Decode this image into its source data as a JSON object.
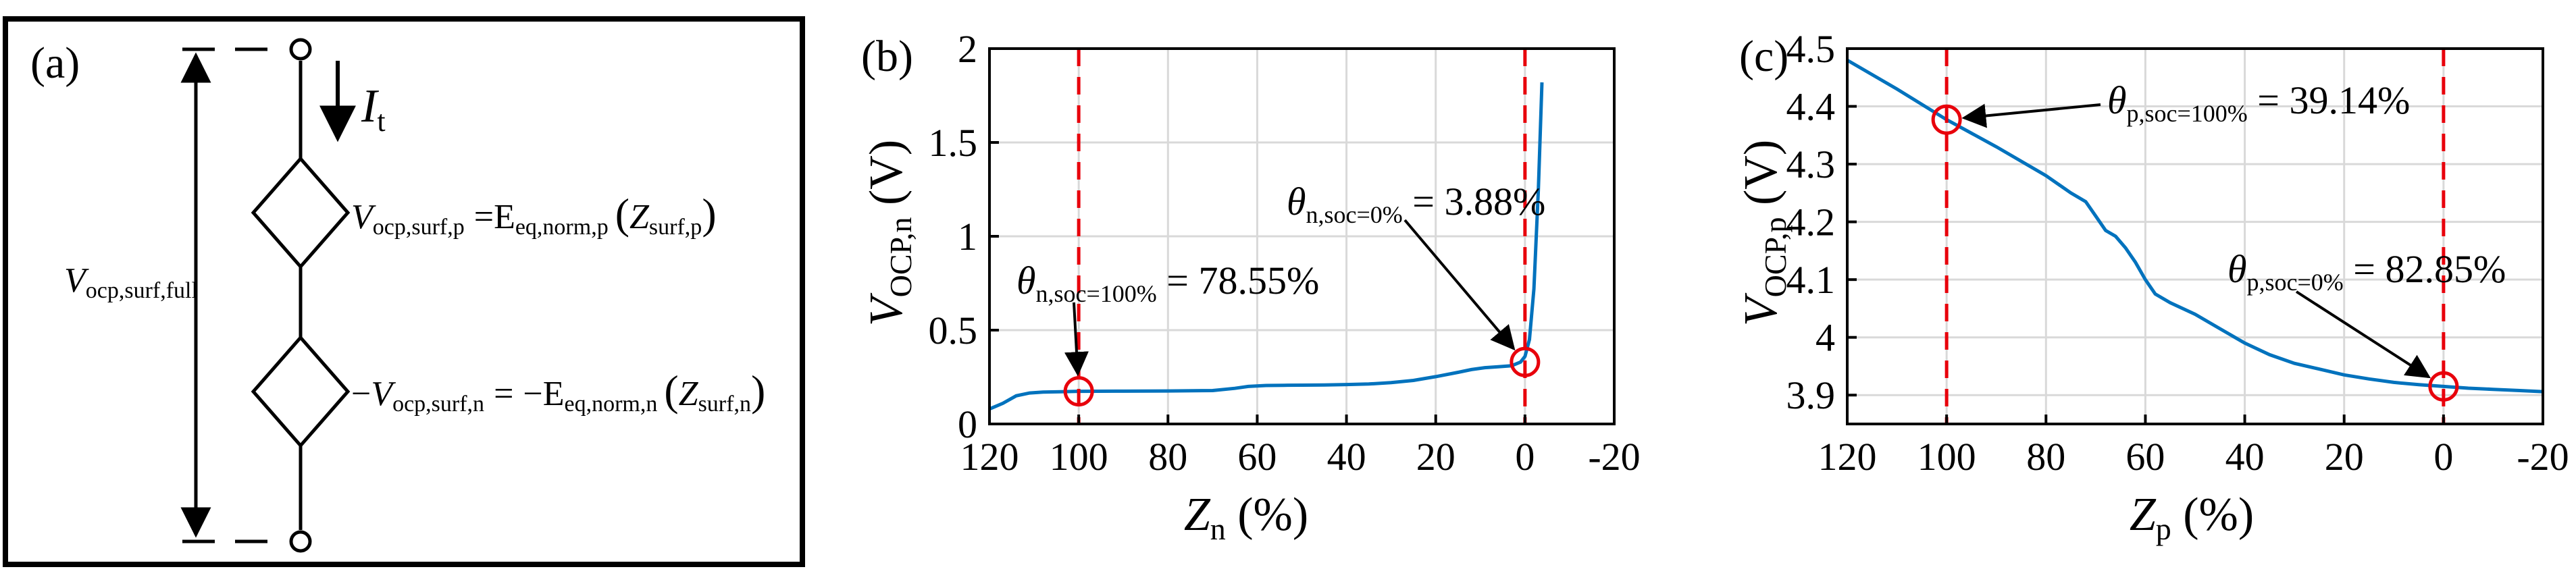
{
  "figure": {
    "panels": [
      {
        "id": "a",
        "label": "(a)",
        "type": "circuit",
        "left_voltage": {
          "main": "V",
          "sub": "ocp,surf,full"
        },
        "current": {
          "main": "I",
          "sub": "t"
        },
        "source_top": {
          "lhs_sign": "",
          "lhs_main": "V",
          "lhs_sub": "ocp,surf,p",
          "eq": "=",
          "rhs_sign": "",
          "fn_main": "E",
          "fn_sub": "eq,norm,p",
          "arg_main": "Z",
          "arg_sub": "surf,p"
        },
        "source_bottom": {
          "lhs_sign": "−",
          "lhs_main": "V",
          "lhs_sub": "ocp,surf,n",
          "eq": "=",
          "rhs_sign": "−",
          "fn_main": "E",
          "fn_sub": "eq,norm,n",
          "arg_main": "Z",
          "arg_sub": "surf,n"
        }
      }
    ]
  },
  "chart_data": [
    {
      "id": "b",
      "label": "(b)",
      "type": "line",
      "xlabel": {
        "main": "Z",
        "sub": "n",
        "unit": " (%)"
      },
      "ylabel": {
        "main": "V",
        "sub": "OCP,n",
        "unit": " (V)"
      },
      "xlim": [
        120,
        -20
      ],
      "x_reversed": true,
      "ylim": [
        0,
        2
      ],
      "xticks": [
        120,
        100,
        80,
        60,
        40,
        20,
        0,
        -20
      ],
      "xtick_labels": [
        "120",
        "100",
        "80",
        "60",
        "40",
        "20",
        "0",
        "-20"
      ],
      "yticks": [
        0,
        0.5,
        1,
        1.5,
        2
      ],
      "ytick_labels": [
        "0",
        "0.5",
        "1",
        "1.5",
        "2"
      ],
      "grid": true,
      "line_color": "#0072BD",
      "series": [
        {
          "x": [
            120,
            117,
            114,
            111,
            108,
            104,
            100,
            90,
            80,
            70,
            65,
            62,
            58,
            54,
            50,
            45,
            40,
            35,
            30,
            25,
            20,
            15,
            12,
            9,
            6,
            3,
            1,
            0,
            -1,
            -2,
            -3,
            -3.8
          ],
          "y": [
            0.08,
            0.11,
            0.15,
            0.165,
            0.17,
            0.172,
            0.174,
            0.175,
            0.176,
            0.178,
            0.19,
            0.2,
            0.205,
            0.206,
            0.207,
            0.208,
            0.21,
            0.213,
            0.22,
            0.232,
            0.252,
            0.275,
            0.29,
            0.3,
            0.305,
            0.31,
            0.33,
            0.36,
            0.45,
            0.72,
            1.25,
            1.82
          ]
        }
      ],
      "markers": [
        {
          "x": 100,
          "y": 0.174,
          "color": "#E8000B"
        },
        {
          "x": 0,
          "y": 0.33,
          "color": "#E8000B"
        }
      ],
      "vlines": [
        {
          "x": 100,
          "color": "#E8000B"
        },
        {
          "x": 0,
          "color": "#E8000B"
        }
      ],
      "annotations": [
        {
          "main": "θ",
          "sub": "n,soc=100%",
          "text": " = 78.55%",
          "target_x": 100,
          "target_y": 0.174
        },
        {
          "main": "θ",
          "sub": "n,soc=0%",
          "text": " = 3.88%",
          "target_x": 0,
          "target_y": 0.33
        }
      ]
    },
    {
      "id": "c",
      "label": "(c)",
      "type": "line",
      "xlabel": {
        "main": "Z",
        "sub": "p",
        "unit": " (%)"
      },
      "ylabel": {
        "main": "V",
        "sub": "OCP,p",
        "unit": " (V)"
      },
      "xlim": [
        120,
        -20
      ],
      "x_reversed": true,
      "ylim": [
        3.85,
        4.5
      ],
      "xticks": [
        120,
        100,
        80,
        60,
        40,
        20,
        0,
        -20
      ],
      "xtick_labels": [
        "120",
        "100",
        "80",
        "60",
        "40",
        "20",
        "0",
        "-20"
      ],
      "yticks": [
        3.9,
        4,
        4.1,
        4.2,
        4.3,
        4.4,
        4.5
      ],
      "ytick_labels": [
        "3.9",
        "4",
        "4.1",
        "4.2",
        "4.3",
        "4.4",
        "4.5"
      ],
      "grid": true,
      "line_color": "#0072BD",
      "series": [
        {
          "x": [
            120,
            110,
            100,
            90,
            80,
            75,
            72,
            70,
            68,
            66,
            64,
            62,
            60,
            58,
            55,
            50,
            45,
            40,
            35,
            30,
            25,
            20,
            15,
            10,
            5,
            0,
            -5,
            -10,
            -15,
            -20
          ],
          "y": [
            4.48,
            4.43,
            4.377,
            4.33,
            4.28,
            4.25,
            4.235,
            4.21,
            4.185,
            4.175,
            4.155,
            4.13,
            4.1,
            4.075,
            4.06,
            4.04,
            4.015,
            3.99,
            3.97,
            3.955,
            3.945,
            3.935,
            3.928,
            3.922,
            3.918,
            3.915,
            3.912,
            3.91,
            3.908,
            3.906
          ]
        }
      ],
      "markers": [
        {
          "x": 100,
          "y": 4.377,
          "color": "#E8000B"
        },
        {
          "x": 0,
          "y": 3.915,
          "color": "#E8000B"
        }
      ],
      "vlines": [
        {
          "x": 100,
          "color": "#E8000B"
        },
        {
          "x": 0,
          "color": "#E8000B"
        }
      ],
      "annotations": [
        {
          "main": "θ",
          "sub": "p,soc=100%",
          "text": " = 39.14%",
          "target_x": 100,
          "target_y": 4.377
        },
        {
          "main": "θ",
          "sub": "p,soc=0%",
          "text": " = 82.85%",
          "target_x": 0,
          "target_y": 3.915
        }
      ]
    }
  ]
}
